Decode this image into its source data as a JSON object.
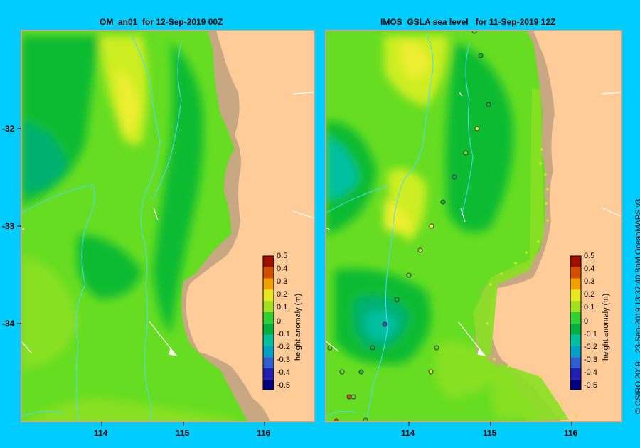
{
  "left_panel": {
    "title": "OM_an01  for 12-Sep-2019 00Z"
  },
  "right_panel": {
    "title": "IMOS  GSLA sea level   for 11-Sep-2019 12Z"
  },
  "y_ticks": [
    "-32",
    "-33",
    "-34"
  ],
  "x_ticks": [
    "114",
    "115",
    "116"
  ],
  "colorbar": {
    "label": "height anomaly (m)",
    "ticks": [
      "0.5",
      "0.4",
      "0.3",
      "0.2",
      "0.1",
      "0",
      "-0.1",
      "-0.2",
      "-0.3",
      "-0.4",
      "-0.5"
    ],
    "colors": [
      "#000080",
      "#2020b0",
      "#3060d0",
      "#00a0c8",
      "#00c0a0",
      "#00b040",
      "#30d030",
      "#a0e020",
      "#e8e820",
      "#f0a000",
      "#d05000",
      "#a01000"
    ]
  },
  "credit": "© CSIRO 2019    23-Sep-2019 13:37:40 BoM OceanMAPS v3",
  "colors": {
    "background": "#00ccff",
    "land": "#ffcc99",
    "shelf": "#c8a882",
    "ocean_mid": "#66dd22",
    "ocean_low": "#11bb33",
    "ocean_lower": "#00b070",
    "ocean_lowest": "#00c0a0",
    "ocean_high": "#ccee22",
    "ocean_highest": "#eeee33"
  }
}
